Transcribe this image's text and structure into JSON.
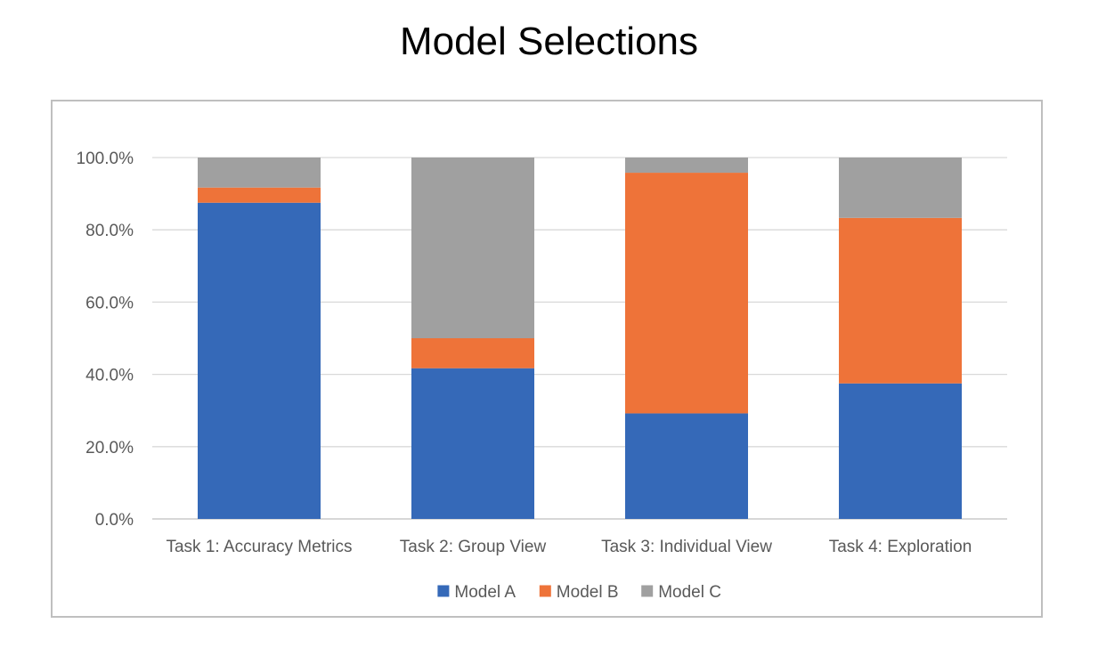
{
  "chart_data": {
    "type": "bar",
    "stacked": true,
    "title": "Model Selections",
    "xlabel": "",
    "ylabel": "",
    "categories": [
      "Task 1: Accuracy Metrics",
      "Task 2: Group View",
      "Task 3: Individual View",
      "Task 4: Exploration"
    ],
    "series": [
      {
        "name": "Model A",
        "color": "#3569b8",
        "values": [
          87.5,
          41.7,
          29.2,
          37.5
        ]
      },
      {
        "name": "Model B",
        "color": "#ee7339",
        "values": [
          4.2,
          8.3,
          66.6,
          45.8
        ]
      },
      {
        "name": "Model C",
        "color": "#a0a0a0",
        "values": [
          8.3,
          50.0,
          4.2,
          16.7
        ]
      }
    ],
    "ylim": [
      0,
      100
    ],
    "yticks": [
      0,
      20,
      40,
      60,
      80,
      100
    ],
    "ytick_labels": [
      "0.0%",
      "20.0%",
      "40.0%",
      "60.0%",
      "80.0%",
      "100.0%"
    ],
    "grid": true,
    "legend_position": "bottom"
  }
}
